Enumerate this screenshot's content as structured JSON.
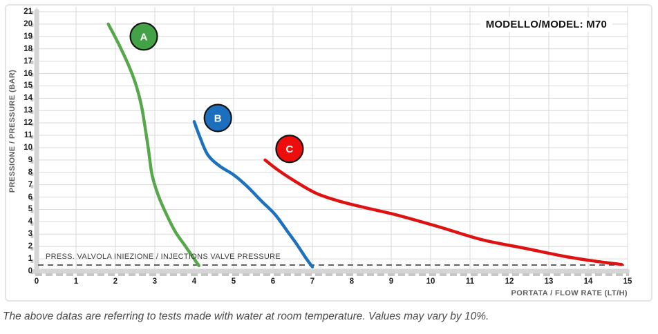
{
  "header": {
    "model_note": "MODELLO/MODEL: M70"
  },
  "caption": "The above datas are referring to tests made with water at room temperature. Values may vary by 10%.",
  "chart_data": {
    "type": "line",
    "title": "",
    "xlabel": "PORTATA / FLOW RATE (LT/H)",
    "ylabel": "PRESSIONE / PRESSURE (BAR)",
    "xlim": [
      0,
      15
    ],
    "ylim": [
      0,
      21
    ],
    "x_ticks": [
      0,
      1,
      2,
      3,
      4,
      5,
      6,
      7,
      8,
      9,
      10,
      11,
      12,
      13,
      14,
      15
    ],
    "y_ticks": [
      0,
      1,
      2,
      3,
      4,
      5,
      6,
      7,
      8,
      9,
      10,
      11,
      12,
      13,
      14,
      15,
      16,
      17,
      18,
      19,
      20,
      21
    ],
    "grid": true,
    "grid_color": "#d9d9d9",
    "axis_band_color": "#d5d5d5",
    "axis_band_tick_color": "#c7c7c7",
    "legend_position": "badges-on-curves",
    "series": [
      {
        "name": "A",
        "color": "#56a84b",
        "badge_color": "#43a245",
        "badge_border": "#141414",
        "badge_pos": [
          2.72,
          19.0
        ],
        "points": [
          [
            1.82,
            20.0
          ],
          [
            2.08,
            18.4
          ],
          [
            2.33,
            16.7
          ],
          [
            2.52,
            15.1
          ],
          [
            2.66,
            13.4
          ],
          [
            2.76,
            11.5
          ],
          [
            2.84,
            9.8
          ],
          [
            2.93,
            7.8
          ],
          [
            3.08,
            6.2
          ],
          [
            3.28,
            4.7
          ],
          [
            3.52,
            3.2
          ],
          [
            3.78,
            2.0
          ],
          [
            4.02,
            0.9
          ],
          [
            4.12,
            0.45
          ]
        ]
      },
      {
        "name": "B",
        "color": "#1e71bd",
        "badge_color": "#1c6fbf",
        "badge_border": "#141414",
        "badge_pos": [
          4.6,
          12.4
        ],
        "points": [
          [
            4.0,
            12.1
          ],
          [
            4.15,
            10.8
          ],
          [
            4.35,
            9.4
          ],
          [
            4.65,
            8.5
          ],
          [
            5.0,
            7.8
          ],
          [
            5.35,
            6.85
          ],
          [
            5.7,
            5.7
          ],
          [
            6.05,
            4.6
          ],
          [
            6.35,
            3.3
          ],
          [
            6.6,
            2.2
          ],
          [
            6.85,
            1.0
          ],
          [
            7.0,
            0.35
          ]
        ]
      },
      {
        "name": "C",
        "color": "#df1212",
        "badge_color": "#ee0d0d",
        "badge_border": "#141414",
        "badge_pos": [
          6.42,
          9.9
        ],
        "points": [
          [
            5.8,
            9.0
          ],
          [
            6.1,
            8.25
          ],
          [
            6.55,
            7.3
          ],
          [
            7.1,
            6.3
          ],
          [
            7.7,
            5.65
          ],
          [
            8.4,
            5.1
          ],
          [
            9.2,
            4.5
          ],
          [
            10.2,
            3.6
          ],
          [
            11.3,
            2.55
          ],
          [
            12.4,
            1.85
          ],
          [
            13.4,
            1.2
          ],
          [
            14.2,
            0.8
          ],
          [
            14.85,
            0.55
          ]
        ]
      }
    ],
    "reference_line": {
      "y": 0.5,
      "style": "dashed",
      "color": "#3c3c3c",
      "label": "PRESS. VALVOLA INIEZIONE / INJECTIONS VALVE PRESSURE"
    }
  }
}
